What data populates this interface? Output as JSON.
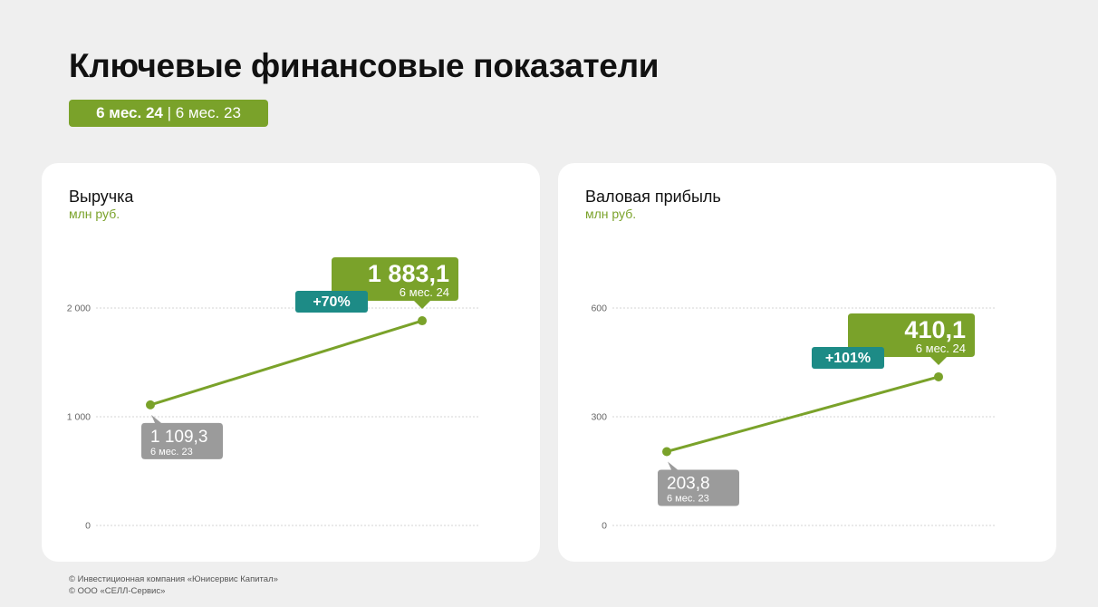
{
  "header": {
    "title": "Ключевые финансовые показатели",
    "period_current": "6 мес. 24",
    "period_separator": " | ",
    "period_previous": "6 мес. 23"
  },
  "colors": {
    "accent_green": "#7aa22a",
    "previous_gray": "#9b9b9b",
    "growth_teal": "#1d8b86",
    "gridline": "#d4d4d4"
  },
  "chart_data": [
    {
      "type": "line",
      "title": "Выручка",
      "unit": "млн руб.",
      "categories": [
        "6 мес. 23",
        "6 мес. 24"
      ],
      "values": [
        1109.3,
        1883.1
      ],
      "value_labels": [
        "1 109,3",
        "1 883,1"
      ],
      "growth_label": "+70%",
      "yticks": [
        0,
        1000,
        2000
      ],
      "ytick_labels": [
        "0",
        "1 000",
        "2 000"
      ],
      "ylim": [
        0,
        2000
      ],
      "grid": true
    },
    {
      "type": "line",
      "title": "Валовая прибыль",
      "unit": "млн руб.",
      "categories": [
        "6 мес. 23",
        "6 мес. 24"
      ],
      "values": [
        203.8,
        410.1
      ],
      "value_labels": [
        "203,8",
        "410,1"
      ],
      "growth_label": "+101%",
      "yticks": [
        0,
        300,
        600
      ],
      "ytick_labels": [
        "0",
        "300",
        "600"
      ],
      "ylim": [
        0,
        600
      ],
      "grid": true
    }
  ],
  "footer": {
    "line1": "© Инвестиционная компания «Юнисервис Капитал»",
    "line2": "© ООО «СЕЛЛ-Сервис»"
  }
}
